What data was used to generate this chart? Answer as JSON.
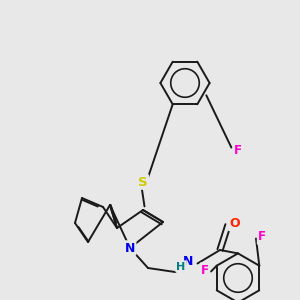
{
  "background_color": "#e8e8e8",
  "bond_color": "#1a1a1a",
  "atom_colors": {
    "N": "#0000ee",
    "S": "#cccc00",
    "O": "#ff2200",
    "F": "#ff00cc",
    "H": "#008080"
  },
  "figsize": [
    3.0,
    3.0
  ],
  "dpi": 100,
  "lw": 1.4,
  "r_hex": 0.115
}
